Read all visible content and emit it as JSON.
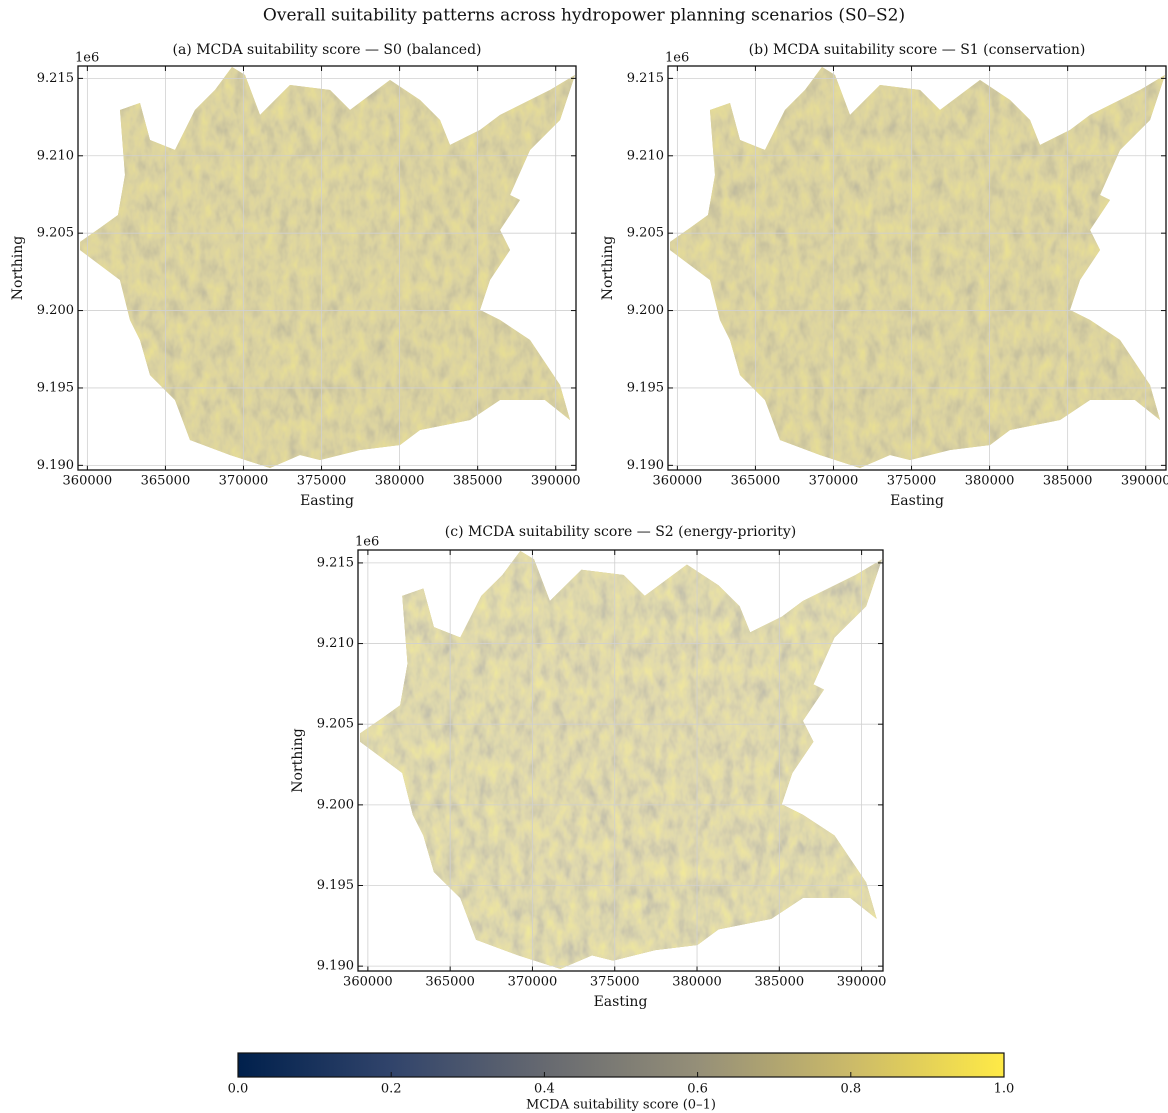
{
  "title": "Overall suitability patterns across hydropower planning scenarios (S0–S2)",
  "chart_data": [
    {
      "type": "map",
      "title": "(a) MCDA suitability score — S0 (balanced)",
      "xlabel": "Easting",
      "ylabel": "Northing",
      "offset_label": "1e6",
      "xlim": [
        359400,
        391300
      ],
      "xticks": [
        360000,
        365000,
        370000,
        375000,
        380000,
        385000,
        390000
      ],
      "ylim": [
        9.1897,
        9.2158
      ],
      "yticks": [
        {
          "value": 9.19,
          "label": "9.190"
        },
        9.195,
        {
          "value": 9.2,
          "label": "9.200"
        },
        9.205,
        {
          "value": 9.21,
          "label": "9.210"
        },
        9.215
      ],
      "grid": true
    },
    {
      "type": "map",
      "title": "(b) MCDA suitability score — S1 (conservation)",
      "xlabel": "Easting",
      "ylabel": "Northing",
      "offset_label": "1e6",
      "xlim": [
        359400,
        391300
      ],
      "xticks": [
        360000,
        365000,
        370000,
        375000,
        380000,
        385000,
        390000
      ],
      "ylim": [
        9.1897,
        9.2158
      ],
      "yticks": [
        {
          "value": 9.19,
          "label": "9.190"
        },
        9.195,
        {
          "value": 9.2,
          "label": "9.200"
        },
        9.205,
        {
          "value": 9.21,
          "label": "9.210"
        },
        9.215
      ],
      "grid": true
    },
    {
      "type": "map",
      "title": "(c) MCDA suitability score — S2 (energy-priority)",
      "xlabel": "Easting",
      "ylabel": "Northing",
      "offset_label": "1e6",
      "xlim": [
        359400,
        391300
      ],
      "xticks": [
        360000,
        365000,
        370000,
        375000,
        380000,
        385000,
        390000
      ],
      "ylim": [
        9.1897,
        9.2158
      ],
      "yticks": [
        {
          "value": 9.19,
          "label": "9.190"
        },
        9.195,
        {
          "value": 9.2,
          "label": "9.200"
        },
        9.205,
        {
          "value": 9.21,
          "label": "9.210"
        },
        9.215
      ],
      "grid": true
    }
  ],
  "colorbar": {
    "label": "MCDA suitability score (0–1)",
    "xlim": [
      0,
      1
    ],
    "xticks": [
      {
        "value": 0,
        "label": "0.0"
      },
      0.2,
      0.4,
      0.6,
      0.8,
      {
        "value": 1,
        "label": "1.0"
      }
    ],
    "colors": [
      "#00204c",
      "#31446b",
      "#666970",
      "#958f78",
      "#cbba69",
      "#ffea46"
    ]
  }
}
